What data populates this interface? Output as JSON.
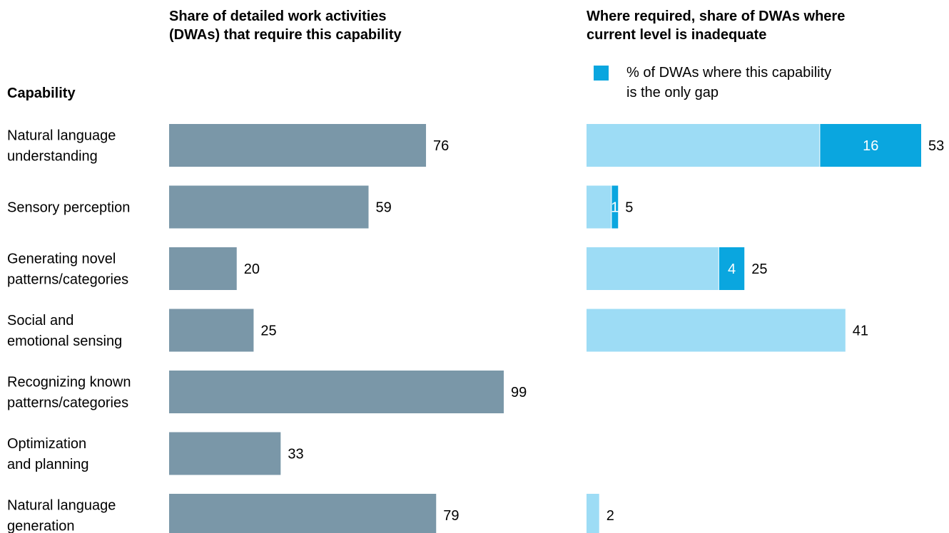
{
  "left_header": "Share of detailed work activities\n(DWAs) that require this capability",
  "right_header": "Where required, share of DWAs where\ncurrent level is inadequate",
  "capability_title": "Capability",
  "legend_label": "% of DWAs where this capability\nis the only gap",
  "colors": {
    "required_bar": "#7a97a8",
    "inadequate_bar": "#9ddcf5",
    "only_gap_bar": "#0aa6df"
  },
  "chart_data": [
    {
      "type": "bar",
      "orientation": "horizontal",
      "title": "Share of detailed work activities (DWAs) that require this capability",
      "categories": [
        "Natural language understanding",
        "Sensory perception",
        "Generating novel patterns/categories",
        "Social and emotional sensing",
        "Recognizing known patterns/categories",
        "Optimization and planning",
        "Natural language generation"
      ],
      "category_labels": [
        "Natural language\nunderstanding",
        "Sensory perception",
        "Generating novel\npatterns/categories",
        "Social and\nemotional sensing",
        "Recognizing known\npatterns/categories",
        "Optimization\nand planning",
        "Natural language\ngeneration"
      ],
      "values": [
        76,
        59,
        20,
        25,
        99,
        33,
        79
      ],
      "xlim": [
        0,
        100
      ],
      "grid": false
    },
    {
      "type": "bar",
      "orientation": "horizontal",
      "stacked": true,
      "title": "Where required, share of DWAs where current level is inadequate",
      "categories": [
        "Natural language understanding",
        "Sensory perception",
        "Generating novel patterns/categories",
        "Social and emotional sensing",
        "Recognizing known patterns/categories",
        "Optimization and planning",
        "Natural language generation"
      ],
      "totals": [
        53,
        5,
        25,
        41,
        null,
        null,
        2
      ],
      "series": [
        {
          "name": "% of DWAs where this capability is the only gap",
          "values": [
            16,
            1,
            4,
            null,
            null,
            null,
            null
          ]
        }
      ],
      "xlim": [
        0,
        53
      ],
      "legend": "top-left",
      "grid": false
    }
  ]
}
